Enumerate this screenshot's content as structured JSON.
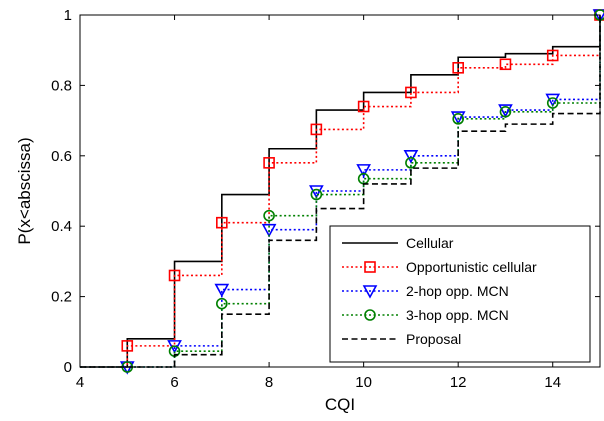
{
  "chart_data": {
    "type": "line",
    "step": "post",
    "title": "",
    "xlabel": "CQI",
    "ylabel": "P(x<abscissa)",
    "xlim": [
      4,
      15
    ],
    "ylim": [
      0,
      1
    ],
    "xticks": [
      4,
      6,
      8,
      10,
      12,
      14
    ],
    "yticks": [
      0,
      0.2,
      0.4,
      0.6,
      0.8,
      1
    ],
    "grid": false,
    "legend_position": "bottom-right",
    "x": [
      4,
      5,
      6,
      7,
      8,
      9,
      10,
      11,
      12,
      13,
      14,
      15
    ],
    "series": [
      {
        "name": "Cellular",
        "color": "#000000",
        "line": "solid",
        "marker": "none",
        "values": [
          0,
          0.08,
          0.3,
          0.49,
          0.62,
          0.73,
          0.78,
          0.83,
          0.88,
          0.89,
          0.91,
          1.0
        ]
      },
      {
        "name": "Opportunistic cellular",
        "color": "#ff0000",
        "line": "dotted",
        "marker": "square",
        "values": [
          0,
          0.06,
          0.26,
          0.41,
          0.58,
          0.675,
          0.74,
          0.78,
          0.85,
          0.86,
          0.885,
          1.0
        ]
      },
      {
        "name": "2-hop opp. MCN",
        "color": "#0000ff",
        "line": "dotted",
        "marker": "triangle-down",
        "values": [
          0,
          0.0,
          0.06,
          0.22,
          0.39,
          0.5,
          0.56,
          0.6,
          0.71,
          0.73,
          0.76,
          1.0
        ]
      },
      {
        "name": "3-hop opp. MCN",
        "color": "#008000",
        "line": "dotted",
        "marker": "circle",
        "values": [
          0,
          0.0,
          0.045,
          0.18,
          0.43,
          0.49,
          0.535,
          0.58,
          0.705,
          0.725,
          0.75,
          1.0
        ]
      },
      {
        "name": "Proposal",
        "color": "#000000",
        "line": "dashed",
        "marker": "none",
        "values": [
          0,
          0.0,
          0.035,
          0.15,
          0.36,
          0.45,
          0.52,
          0.565,
          0.67,
          0.69,
          0.72,
          1.0
        ]
      }
    ]
  }
}
